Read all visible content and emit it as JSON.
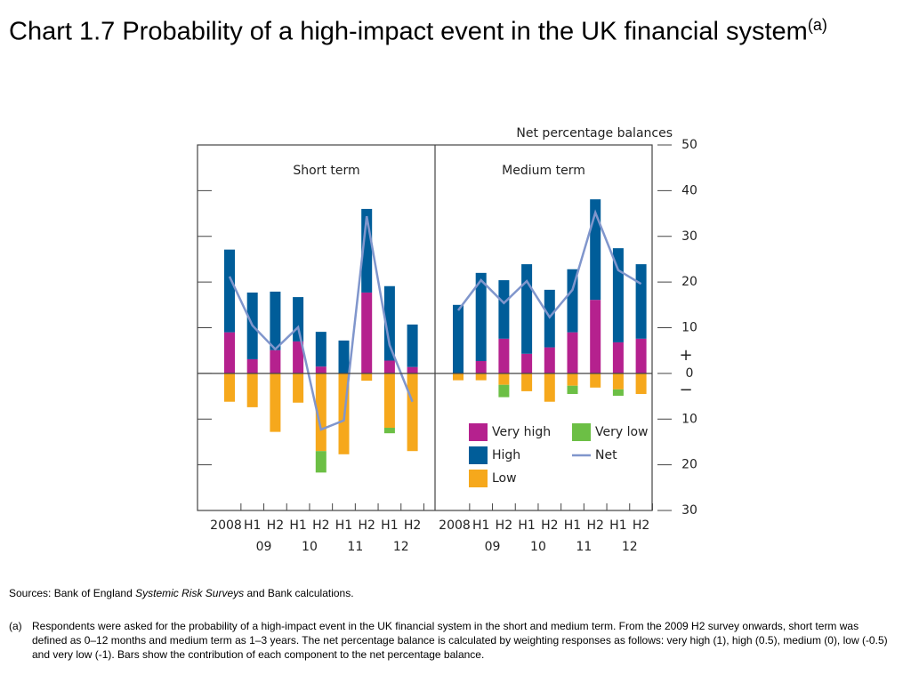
{
  "chart_data": {
    "type": "bar",
    "stacked": true,
    "title": "Chart 1.7  Probability of a high-impact event in the UK financial system",
    "title_note": "(a)",
    "y_axis_label": "Net percentage balances",
    "ylim": [
      -30,
      50
    ],
    "yticks": [
      50,
      40,
      30,
      20,
      10,
      0,
      {
        "value": -10,
        "label": "10"
      },
      {
        "value": -20,
        "label": "20"
      },
      {
        "value": -30,
        "label": "30"
      }
    ],
    "sign_labels": [
      "+",
      "−"
    ],
    "categories": [
      "2008",
      "H1",
      "H2",
      "H1",
      "H2",
      "H1",
      "H2",
      "H1",
      "H2"
    ],
    "year_labels": [
      "09",
      "10",
      "11",
      "12"
    ],
    "legend": "lower right",
    "panels": [
      {
        "title": "Short term",
        "series": [
          {
            "name": "Very high",
            "color": "#b5218e",
            "values": [
              9,
              3.1,
              5.1,
              7,
              1.5,
              0,
              17.7,
              2.8,
              1.4
            ]
          },
          {
            "name": "High",
            "color": "#005d99",
            "values": [
              18.1,
              14.6,
              12.8,
              9.7,
              7.6,
              7.2,
              18.3,
              16.3,
              9.3
            ]
          },
          {
            "name": "Low",
            "color": "#f6a81c",
            "values": [
              -6.2,
              -7.4,
              -12.8,
              -6.4,
              -17,
              -17.7,
              -1.6,
              -11.9,
              -17
            ]
          },
          {
            "name": "Very low",
            "color": "#6cbf45",
            "values": [
              0,
              0,
              0,
              0,
              -4.7,
              0,
              0,
              -1.2,
              0
            ]
          },
          {
            "name": "Net",
            "color": "#8096cc",
            "type": "line",
            "values": [
              21.2,
              10.5,
              5.3,
              10.1,
              -12.3,
              -10.3,
              34.4,
              6.2,
              -6.2
            ]
          }
        ]
      },
      {
        "title": "Medium term",
        "series": [
          {
            "name": "Very high",
            "color": "#b5218e",
            "values": [
              0,
              2.7,
              7.6,
              4.3,
              5.7,
              9,
              16.1,
              6.8,
              7.6
            ]
          },
          {
            "name": "High",
            "color": "#005d99",
            "values": [
              15,
              19.3,
              12.8,
              19.6,
              12.6,
              13.8,
              22,
              20.6,
              16.3
            ]
          },
          {
            "name": "Low",
            "color": "#f6a81c",
            "values": [
              -1.5,
              -1.5,
              -2.5,
              -3.9,
              -6.2,
              -2.7,
              -3.1,
              -3.5,
              -4.5
            ]
          },
          {
            "name": "Very low",
            "color": "#6cbf45",
            "values": [
              0,
              0,
              -2.7,
              0,
              0,
              -1.8,
              0,
              -1.4,
              0
            ]
          },
          {
            "name": "Net",
            "color": "#8096cc",
            "type": "line",
            "values": [
              13.8,
              20.4,
              15.4,
              20.2,
              12.3,
              18.3,
              35.2,
              22.6,
              19.6
            ]
          }
        ]
      }
    ]
  },
  "sources": {
    "prefix": "Sources:  Bank of England",
    "italic": "Systemic Risk Surveys",
    "suffix": "and Bank calculations."
  },
  "footnote": {
    "label": "(a)",
    "text": "Respondents were asked for the probability of a high-impact event in the UK financial system in the short and medium term.  From the 2009 H2 survey onwards, short term was defined as 0–12 months and medium term as 1–3 years.  The net percentage balance is calculated by weighting responses as follows:  very high (1), high (0.5), medium (0), low (-0.5) and very low (-1).  Bars show the contribution of each component to the net percentage balance."
  }
}
